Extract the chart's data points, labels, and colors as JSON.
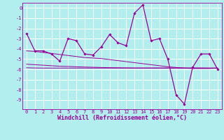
{
  "title": "",
  "xlabel": "Windchill (Refroidissement éolien,°C)",
  "ylabel": "",
  "background_color": "#b2eeee",
  "grid_color": "#ffffff",
  "line_color": "#990099",
  "x_values": [
    0,
    1,
    2,
    3,
    4,
    5,
    6,
    7,
    8,
    9,
    10,
    11,
    12,
    13,
    14,
    15,
    16,
    17,
    18,
    19,
    20,
    21,
    22,
    23
  ],
  "y_main": [
    -2.5,
    -4.2,
    -4.2,
    -4.5,
    -5.2,
    -3.0,
    -3.2,
    -4.5,
    -4.6,
    -3.8,
    -2.6,
    -3.4,
    -3.7,
    -0.5,
    0.3,
    -3.2,
    -3.0,
    -5.0,
    -8.5,
    -9.4,
    -5.8,
    -4.5,
    -4.5,
    -6.0
  ],
  "y_reg1": [
    -4.2,
    -4.25,
    -4.35,
    -4.45,
    -4.55,
    -4.65,
    -4.75,
    -4.85,
    -4.9,
    -4.95,
    -5.05,
    -5.15,
    -5.25,
    -5.35,
    -5.45,
    -5.55,
    -5.65,
    -5.75,
    -5.82,
    -5.88,
    -5.92,
    -5.92,
    -5.92,
    -5.88
  ],
  "y_reg2": [
    -5.85,
    -5.87,
    -5.88,
    -5.88,
    -5.88,
    -5.88,
    -5.88,
    -5.88,
    -5.88,
    -5.88,
    -5.88,
    -5.88,
    -5.88,
    -5.88,
    -5.88,
    -5.88,
    -5.88,
    -5.88,
    -5.88,
    -5.88,
    -5.88,
    -5.88,
    -5.88,
    -5.88
  ],
  "y_reg3": [
    -5.5,
    -5.55,
    -5.6,
    -5.65,
    -5.7,
    -5.72,
    -5.75,
    -5.78,
    -5.8,
    -5.82,
    -5.84,
    -5.85,
    -5.86,
    -5.87,
    -5.87,
    -5.87,
    -5.87,
    -5.87,
    -5.87,
    -5.87,
    -5.87,
    -5.87,
    -5.88,
    -5.88
  ],
  "ylim": [
    -9.9,
    0.5
  ],
  "xlim": [
    -0.5,
    23.5
  ],
  "yticks": [
    0,
    -1,
    -2,
    -3,
    -4,
    -5,
    -6,
    -7,
    -8,
    -9
  ],
  "xticks": [
    0,
    1,
    2,
    3,
    4,
    5,
    6,
    7,
    8,
    9,
    10,
    11,
    12,
    13,
    14,
    15,
    16,
    17,
    18,
    19,
    20,
    21,
    22,
    23
  ],
  "tick_fontsize": 5.0,
  "xlabel_fontsize": 6.0,
  "fig_width": 3.2,
  "fig_height": 2.0,
  "dpi": 100
}
